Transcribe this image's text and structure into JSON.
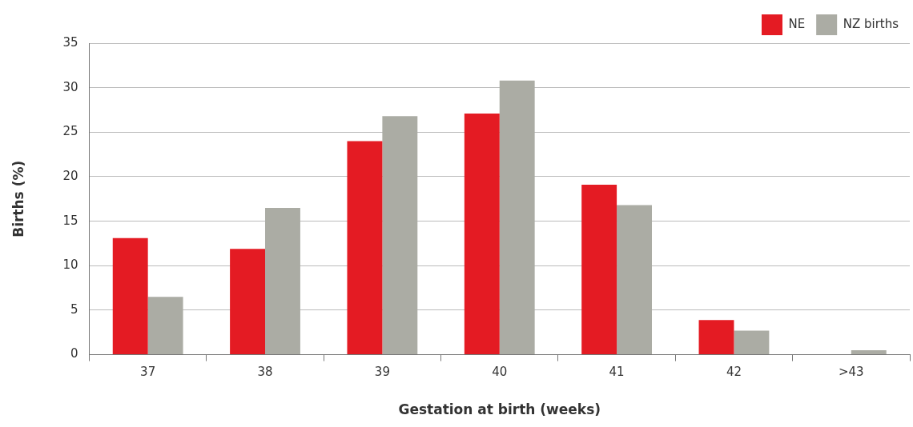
{
  "chart_data": {
    "type": "bar",
    "xlabel": "Gestation at birth (weeks)",
    "ylabel": "Births (%)",
    "categories": [
      "37",
      "38",
      "39",
      "40",
      "41",
      "42",
      ">43"
    ],
    "series": [
      {
        "name": "NE",
        "color": "#e41b23",
        "values": [
          13.1,
          11.9,
          24.0,
          27.1,
          19.1,
          3.9,
          0
        ]
      },
      {
        "name": "NZ births",
        "color": "#abaca4",
        "values": [
          6.5,
          16.5,
          26.8,
          30.8,
          16.8,
          2.7,
          0.5
        ]
      }
    ],
    "ylim": [
      0,
      35
    ],
    "yticks": [
      0,
      5,
      10,
      15,
      20,
      25,
      30,
      35
    ],
    "grid": "y",
    "legend": "top right"
  }
}
